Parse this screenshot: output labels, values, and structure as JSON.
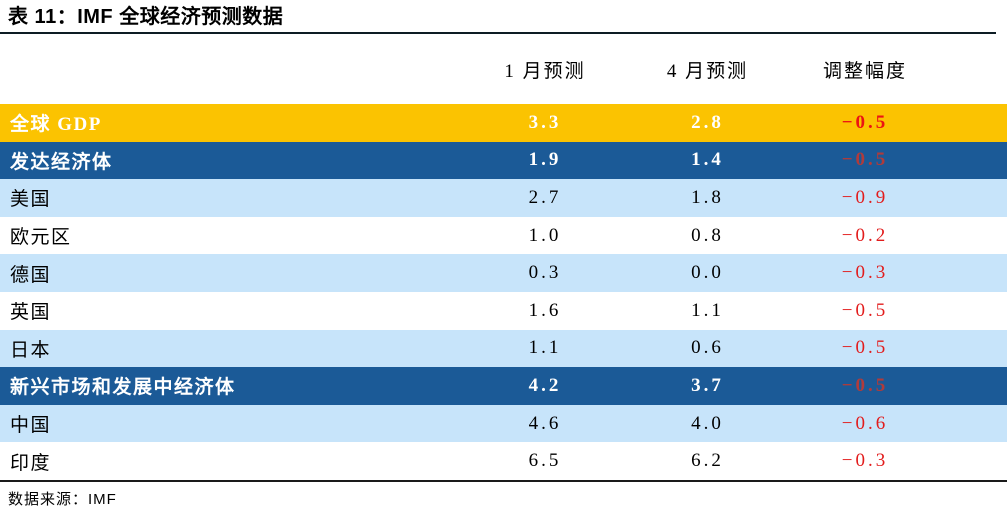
{
  "page": {
    "title": "表 11：IMF 全球经济预测数据",
    "source_note": "数据来源：IMF"
  },
  "colors": {
    "highlight_gold": "#fbc301",
    "highlight_dark_blue": "#1b5a97",
    "row_light_blue": "#c7e4fa",
    "delta_red": "#e21c1c",
    "delta_red_on_dark": "#b03b3b"
  },
  "table": {
    "columns": [
      "",
      "1 月预测",
      "4 月预测",
      "调整幅度"
    ],
    "rows": [
      {
        "label": "全球 GDP",
        "jan": "3.3",
        "apr": "2.8",
        "delta": "−0.5",
        "emphasis": "gold"
      },
      {
        "label": "发达经济体",
        "jan": "1.9",
        "apr": "1.4",
        "delta": "−0.5",
        "emphasis": "dark"
      },
      {
        "label": "美国",
        "jan": "2.7",
        "apr": "1.8",
        "delta": "−0.9",
        "emphasis": "light"
      },
      {
        "label": "欧元区",
        "jan": "1.0",
        "apr": "0.8",
        "delta": "−0.2",
        "emphasis": "plain"
      },
      {
        "label": "德国",
        "jan": "0.3",
        "apr": "0.0",
        "delta": "−0.3",
        "emphasis": "light"
      },
      {
        "label": "英国",
        "jan": "1.6",
        "apr": "1.1",
        "delta": "−0.5",
        "emphasis": "plain"
      },
      {
        "label": "日本",
        "jan": "1.1",
        "apr": "0.6",
        "delta": "−0.5",
        "emphasis": "light"
      },
      {
        "label": "新兴市场和发展中经济体",
        "jan": "4.2",
        "apr": "3.7",
        "delta": "−0.5",
        "emphasis": "dark"
      },
      {
        "label": "中国",
        "jan": "4.6",
        "apr": "4.0",
        "delta": "−0.6",
        "emphasis": "light"
      },
      {
        "label": "印度",
        "jan": "6.5",
        "apr": "6.2",
        "delta": "−0.3",
        "emphasis": "plain"
      }
    ]
  }
}
